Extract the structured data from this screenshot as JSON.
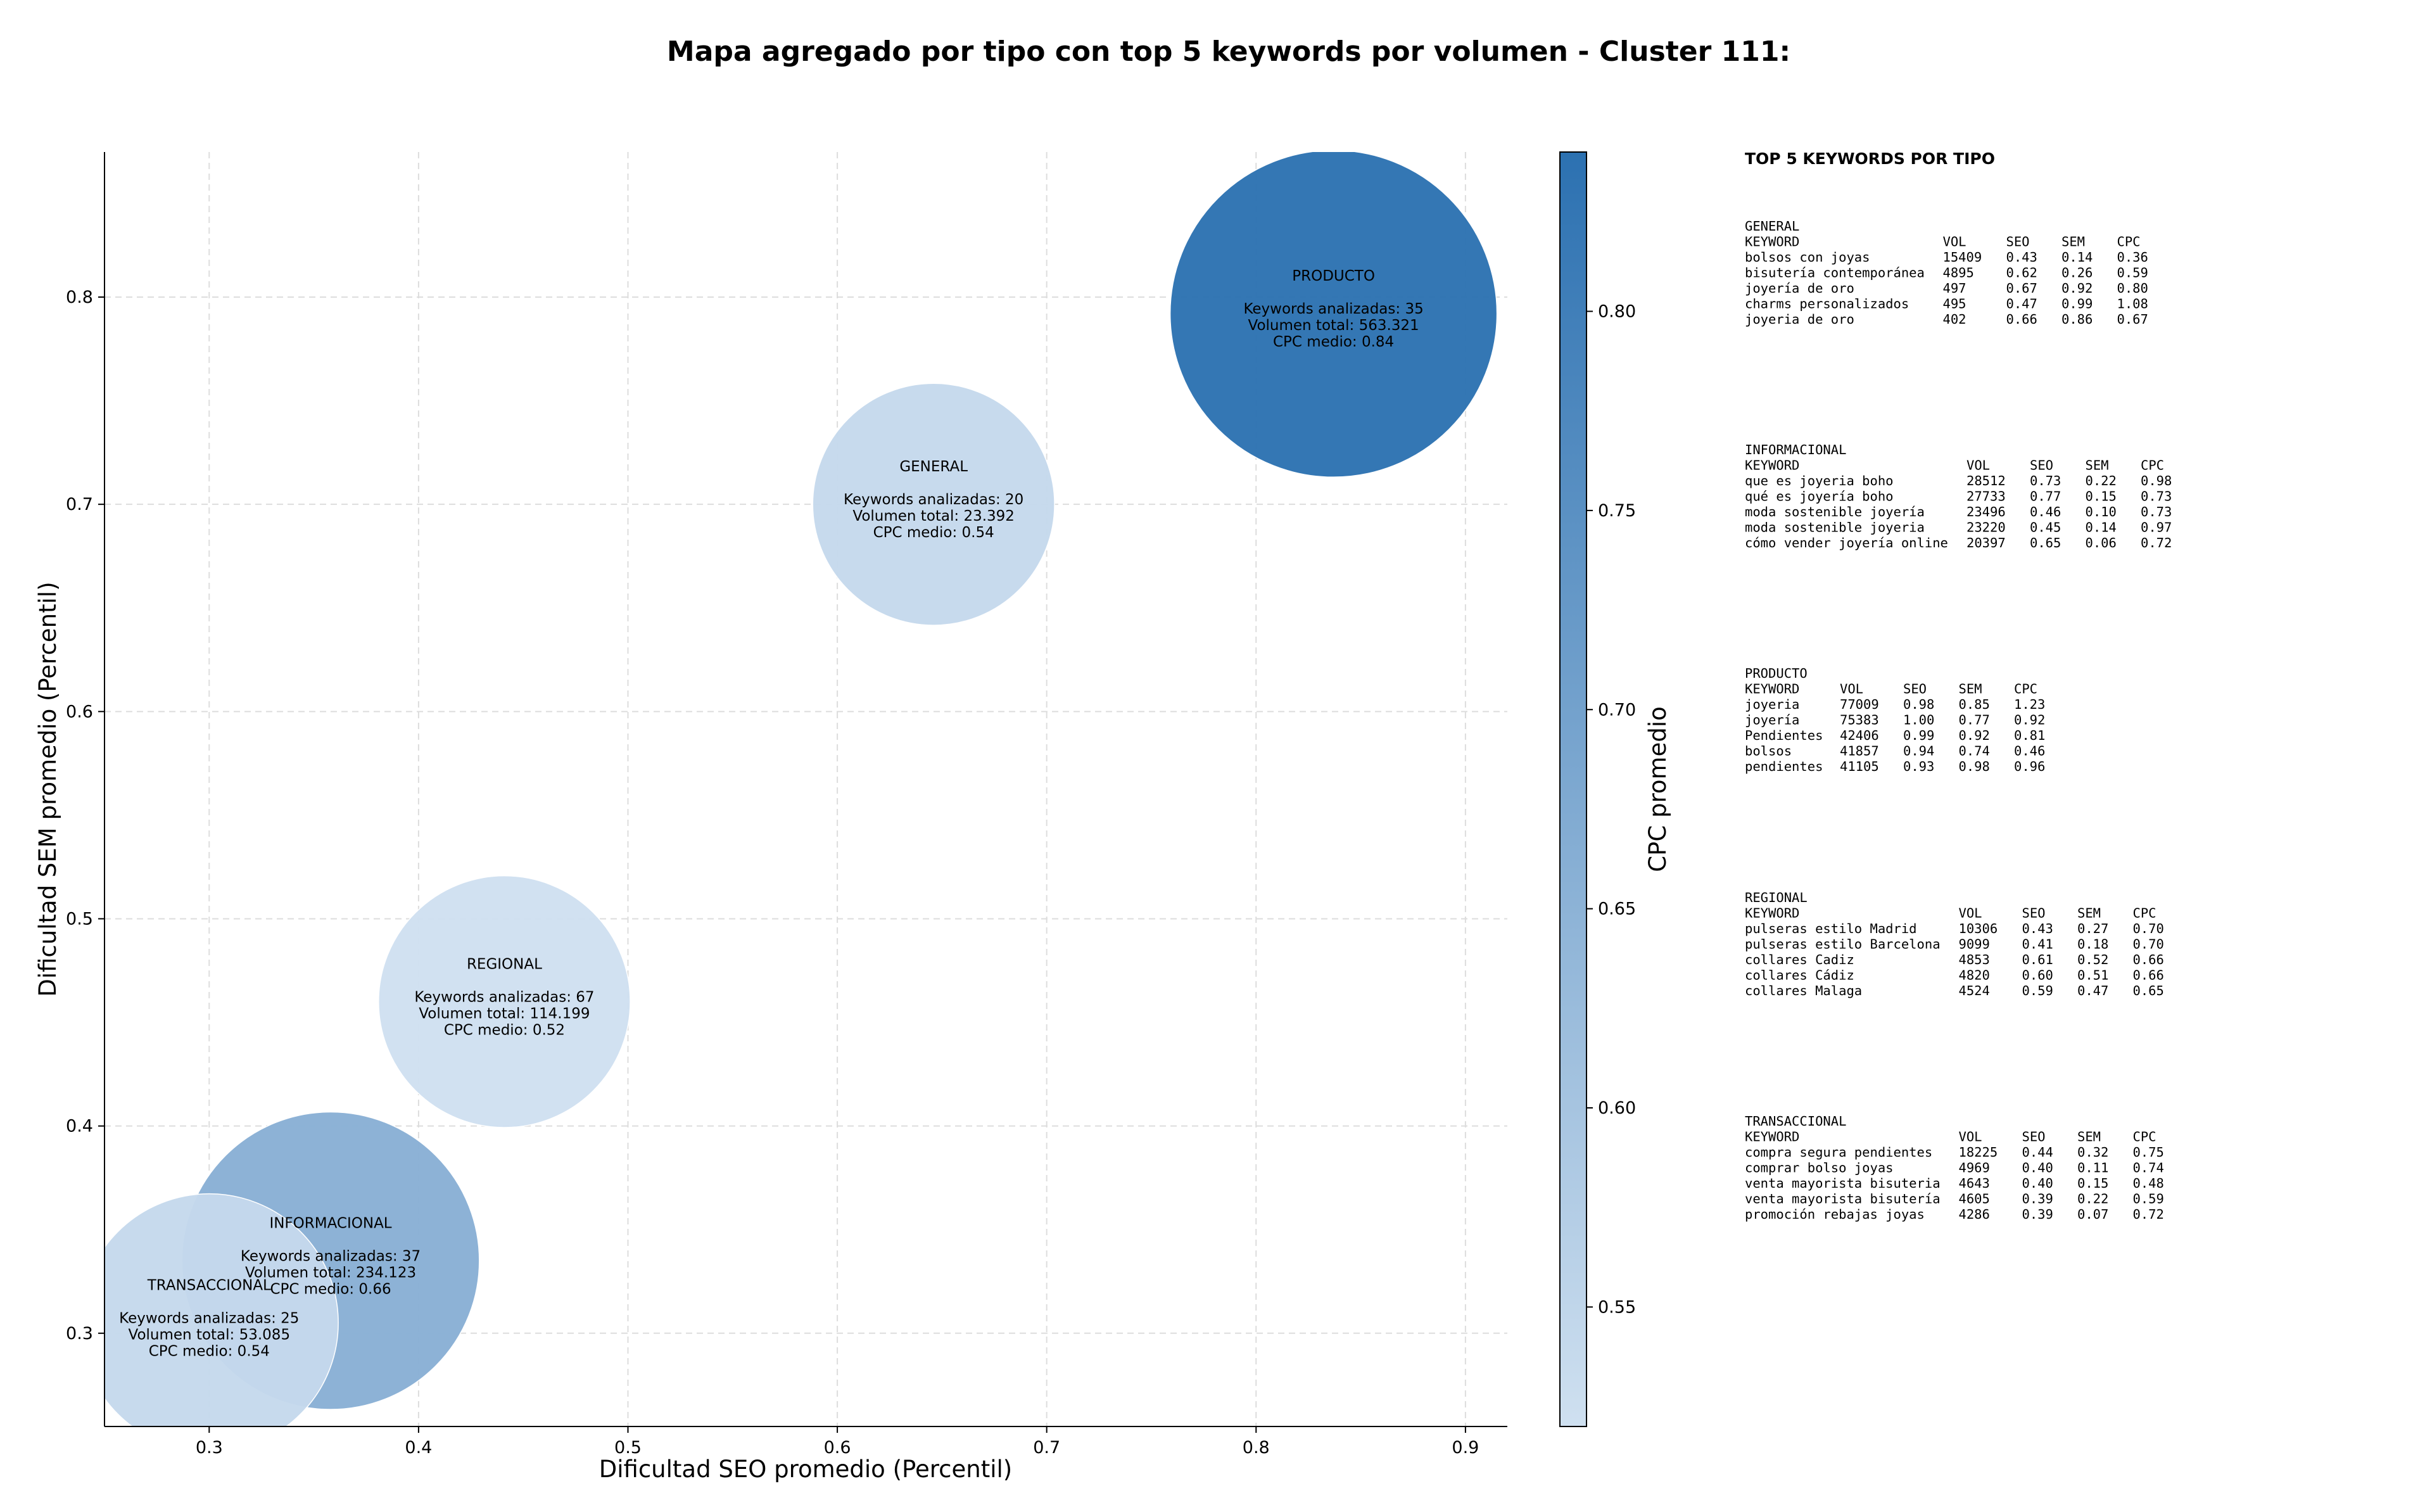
{
  "chart_data": {
    "type": "scatter",
    "title": "Mapa agregado por tipo con top 5 keywords por volumen - Cluster 111:",
    "xlabel": "Dificultad SEO promedio (Percentil)",
    "ylabel": "Dificultad SEM promedio (Percentil)",
    "xlim": [
      0.25,
      0.92
    ],
    "ylim": [
      0.255,
      0.87
    ],
    "xticks": [
      "0.3",
      "0.4",
      "0.5",
      "0.6",
      "0.7",
      "0.8",
      "0.9"
    ],
    "yticks": [
      "0.3",
      "0.4",
      "0.5",
      "0.6",
      "0.7",
      "0.8"
    ],
    "grid": true,
    "colorbar": {
      "label": "CPC promedio",
      "range": [
        0.52,
        0.84
      ],
      "ticks": [
        "0.55",
        "0.60",
        "0.65",
        "0.70",
        "0.75",
        "0.80"
      ],
      "color_low": "#cfe0f0",
      "color_high": "#2c71b1"
    },
    "bubbles": [
      {
        "name": "INFORMACIONAL",
        "x": 0.358,
        "y": 0.335,
        "size_relative": 0.91,
        "cpc": 0.66,
        "lines": [
          "Keywords analizadas: 37",
          "Volumen total: 234.123",
          "CPC medio: 0.66"
        ]
      },
      {
        "name": "TRANSACCIONAL",
        "x": 0.3,
        "y": 0.305,
        "size_relative": 0.79,
        "cpc": 0.54,
        "lines": [
          "Keywords analizadas: 25",
          "Volumen total: 53.085",
          "CPC medio: 0.54"
        ]
      },
      {
        "name": "REGIONAL",
        "x": 0.441,
        "y": 0.46,
        "size_relative": 0.77,
        "cpc": 0.52,
        "lines": [
          "Keywords analizadas: 67",
          "Volumen total: 114.199",
          "CPC medio: 0.52"
        ]
      },
      {
        "name": "GENERAL",
        "x": 0.646,
        "y": 0.7,
        "size_relative": 0.74,
        "cpc": 0.54,
        "lines": [
          "Keywords analizadas: 20",
          "Volumen total: 23.392",
          "CPC medio: 0.54"
        ]
      },
      {
        "name": "PRODUCTO",
        "x": 0.837,
        "y": 0.792,
        "size_relative": 1.0,
        "cpc": 0.84,
        "lines": [
          "Keywords analizadas: 35",
          "Volumen total: 563.321",
          "CPC medio: 0.84"
        ]
      }
    ]
  },
  "side_panel": {
    "heading": "TOP 5 KEYWORDS POR TIPO",
    "columns": [
      "KEYWORD",
      "VOL",
      "SEO",
      "SEM",
      "CPC"
    ],
    "blocks": [
      {
        "title": "GENERAL",
        "rows": [
          [
            "bolsos con joyas",
            "15409",
            "0.43",
            "0.14",
            "0.36"
          ],
          [
            "bisutería contemporánea",
            "4895",
            "0.62",
            "0.26",
            "0.59"
          ],
          [
            "joyería de oro",
            "497",
            "0.67",
            "0.92",
            "0.80"
          ],
          [
            "charms personalizados",
            "495",
            "0.47",
            "0.99",
            "1.08"
          ],
          [
            "joyeria de oro",
            "402",
            "0.66",
            "0.86",
            "0.67"
          ]
        ]
      },
      {
        "title": "INFORMACIONAL",
        "rows": [
          [
            "que es joyeria boho",
            "28512",
            "0.73",
            "0.22",
            "0.98"
          ],
          [
            "qué es joyería boho",
            "27733",
            "0.77",
            "0.15",
            "0.73"
          ],
          [
            "moda sostenible joyería",
            "23496",
            "0.46",
            "0.10",
            "0.73"
          ],
          [
            "moda sostenible joyeria",
            "23220",
            "0.45",
            "0.14",
            "0.97"
          ],
          [
            "cómo vender joyería online",
            "20397",
            "0.65",
            "0.06",
            "0.72"
          ]
        ]
      },
      {
        "title": "PRODUCTO",
        "rows": [
          [
            "joyeria",
            "77009",
            "0.98",
            "0.85",
            "1.23"
          ],
          [
            "joyería",
            "75383",
            "1.00",
            "0.77",
            "0.92"
          ],
          [
            "Pendientes",
            "42406",
            "0.99",
            "0.92",
            "0.81"
          ],
          [
            "bolsos",
            "41857",
            "0.94",
            "0.74",
            "0.46"
          ],
          [
            "pendientes",
            "41105",
            "0.93",
            "0.98",
            "0.96"
          ]
        ]
      },
      {
        "title": "REGIONAL",
        "rows": [
          [
            "pulseras estilo Madrid",
            "10306",
            "0.43",
            "0.27",
            "0.70"
          ],
          [
            "pulseras estilo Barcelona",
            "9099",
            "0.41",
            "0.18",
            "0.70"
          ],
          [
            "collares Cadiz",
            "4853",
            "0.61",
            "0.52",
            "0.66"
          ],
          [
            "collares Cádiz",
            "4820",
            "0.60",
            "0.51",
            "0.66"
          ],
          [
            "collares Malaga",
            "4524",
            "0.59",
            "0.47",
            "0.65"
          ]
        ]
      },
      {
        "title": "TRANSACCIONAL",
        "rows": [
          [
            "compra segura pendientes",
            "18225",
            "0.44",
            "0.32",
            "0.75"
          ],
          [
            "comprar bolso joyas",
            "4969",
            "0.40",
            "0.11",
            "0.74"
          ],
          [
            "venta mayorista bisuteria",
            "4643",
            "0.40",
            "0.15",
            "0.48"
          ],
          [
            "venta mayorista bisutería",
            "4605",
            "0.39",
            "0.22",
            "0.59"
          ],
          [
            "promoción rebajas joyas",
            "4286",
            "0.39",
            "0.07",
            "0.72"
          ]
        ]
      }
    ]
  }
}
